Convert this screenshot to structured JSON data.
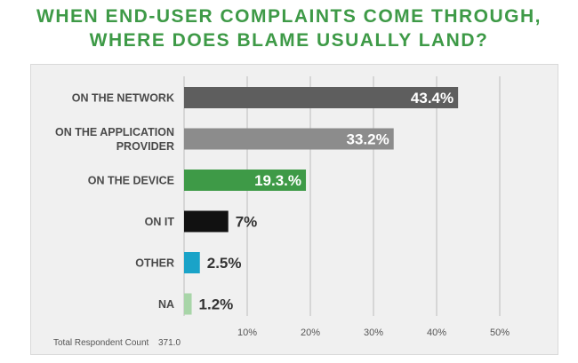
{
  "title_lines": [
    "WHEN END-USER COMPLAINTS COME THROUGH,",
    "WHERE DOES BLAME USUALLY LAND?"
  ],
  "footer": {
    "label": "Total Respondent Count",
    "value": "371.0"
  },
  "colors": {
    "title": "#3e9a47",
    "bars": [
      "#5e5e5e",
      "#8c8c8c",
      "#3e9a47",
      "#111111",
      "#1aa3c8",
      "#a8d5a8"
    ]
  },
  "chart_data": {
    "type": "bar",
    "orientation": "horizontal",
    "categories": [
      [
        "ON THE NETWORK"
      ],
      [
        "ON THE APPLICATION",
        "PROVIDER"
      ],
      [
        "ON THE DEVICE"
      ],
      [
        "ON IT"
      ],
      [
        "OTHER"
      ],
      [
        "NA"
      ]
    ],
    "values": [
      43.4,
      33.2,
      19.3,
      7,
      2.5,
      1.2
    ],
    "value_labels": [
      "43.4%",
      "33.2%",
      "19.3.%",
      "7%",
      "2.5%",
      "1.2%"
    ],
    "xlim": [
      0,
      50
    ],
    "xticks": [
      10,
      20,
      30,
      40,
      50
    ],
    "xtick_labels": [
      "10%",
      "20%",
      "30%",
      "40%",
      "50%"
    ],
    "grid": "vertical"
  }
}
